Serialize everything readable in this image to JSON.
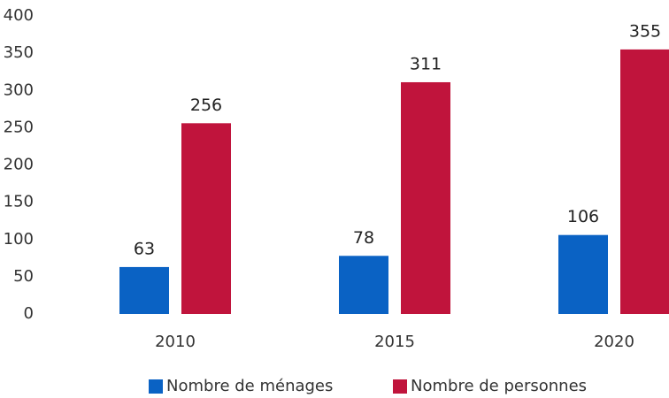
{
  "chart_data": {
    "type": "bar",
    "categories": [
      "2010",
      "2015",
      "2020"
    ],
    "series": [
      {
        "name": "Nombre de ménages",
        "color": "#0a62c4",
        "values": [
          63,
          78,
          106
        ]
      },
      {
        "name": "Nombre de personnes",
        "color": "#c0143c",
        "values": [
          256,
          311,
          355
        ]
      }
    ],
    "ylim": [
      0,
      400
    ],
    "yticks": [
      0,
      50,
      100,
      150,
      200,
      250,
      300,
      350,
      400
    ],
    "grid": false,
    "legend": "bottom"
  }
}
